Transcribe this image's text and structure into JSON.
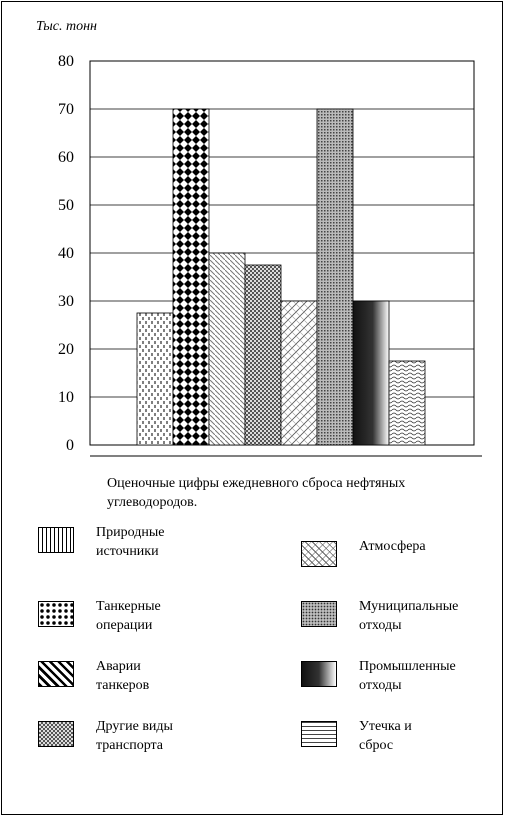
{
  "chart_data": {
    "type": "bar",
    "ylabel": "Тыс. тонн",
    "ylim": [
      0,
      80
    ],
    "yticks": [
      0,
      10,
      20,
      30,
      40,
      50,
      60,
      70,
      80
    ],
    "grid": true,
    "caption": "Оценочные цифры ежедневного сброса нефтяных углеводородов.",
    "categories": [
      "Природные источники",
      "Танкерные операции",
      "Аварии танкеров",
      "Другие виды транспорта",
      "Атмосфера",
      "Муниципальные отходы",
      "Промышленные отходы",
      "Утечка и сброс"
    ],
    "values": [
      27.5,
      70,
      40,
      37.5,
      30,
      70,
      30,
      17.5
    ],
    "legend": [
      {
        "line1": "Природные",
        "line2": "источники",
        "pattern": "dashes"
      },
      {
        "line1": "Атмосфера",
        "line2": "",
        "pattern": "crosshatch"
      },
      {
        "line1": "Танкерные",
        "line2": "операции",
        "pattern": "diamonds"
      },
      {
        "line1": "Муниципальные",
        "line2": "отходы",
        "pattern": "dots"
      },
      {
        "line1": "Аварии",
        "line2": "танкеров",
        "pattern": "thick-diagonal"
      },
      {
        "line1": "Промышленные",
        "line2": "отходы",
        "pattern": "gradient"
      },
      {
        "line1": "Другие виды",
        "line2": "транспорта",
        "pattern": "checker"
      },
      {
        "line1": "Утечка и",
        "line2": "сброс",
        "pattern": "waves"
      }
    ]
  }
}
